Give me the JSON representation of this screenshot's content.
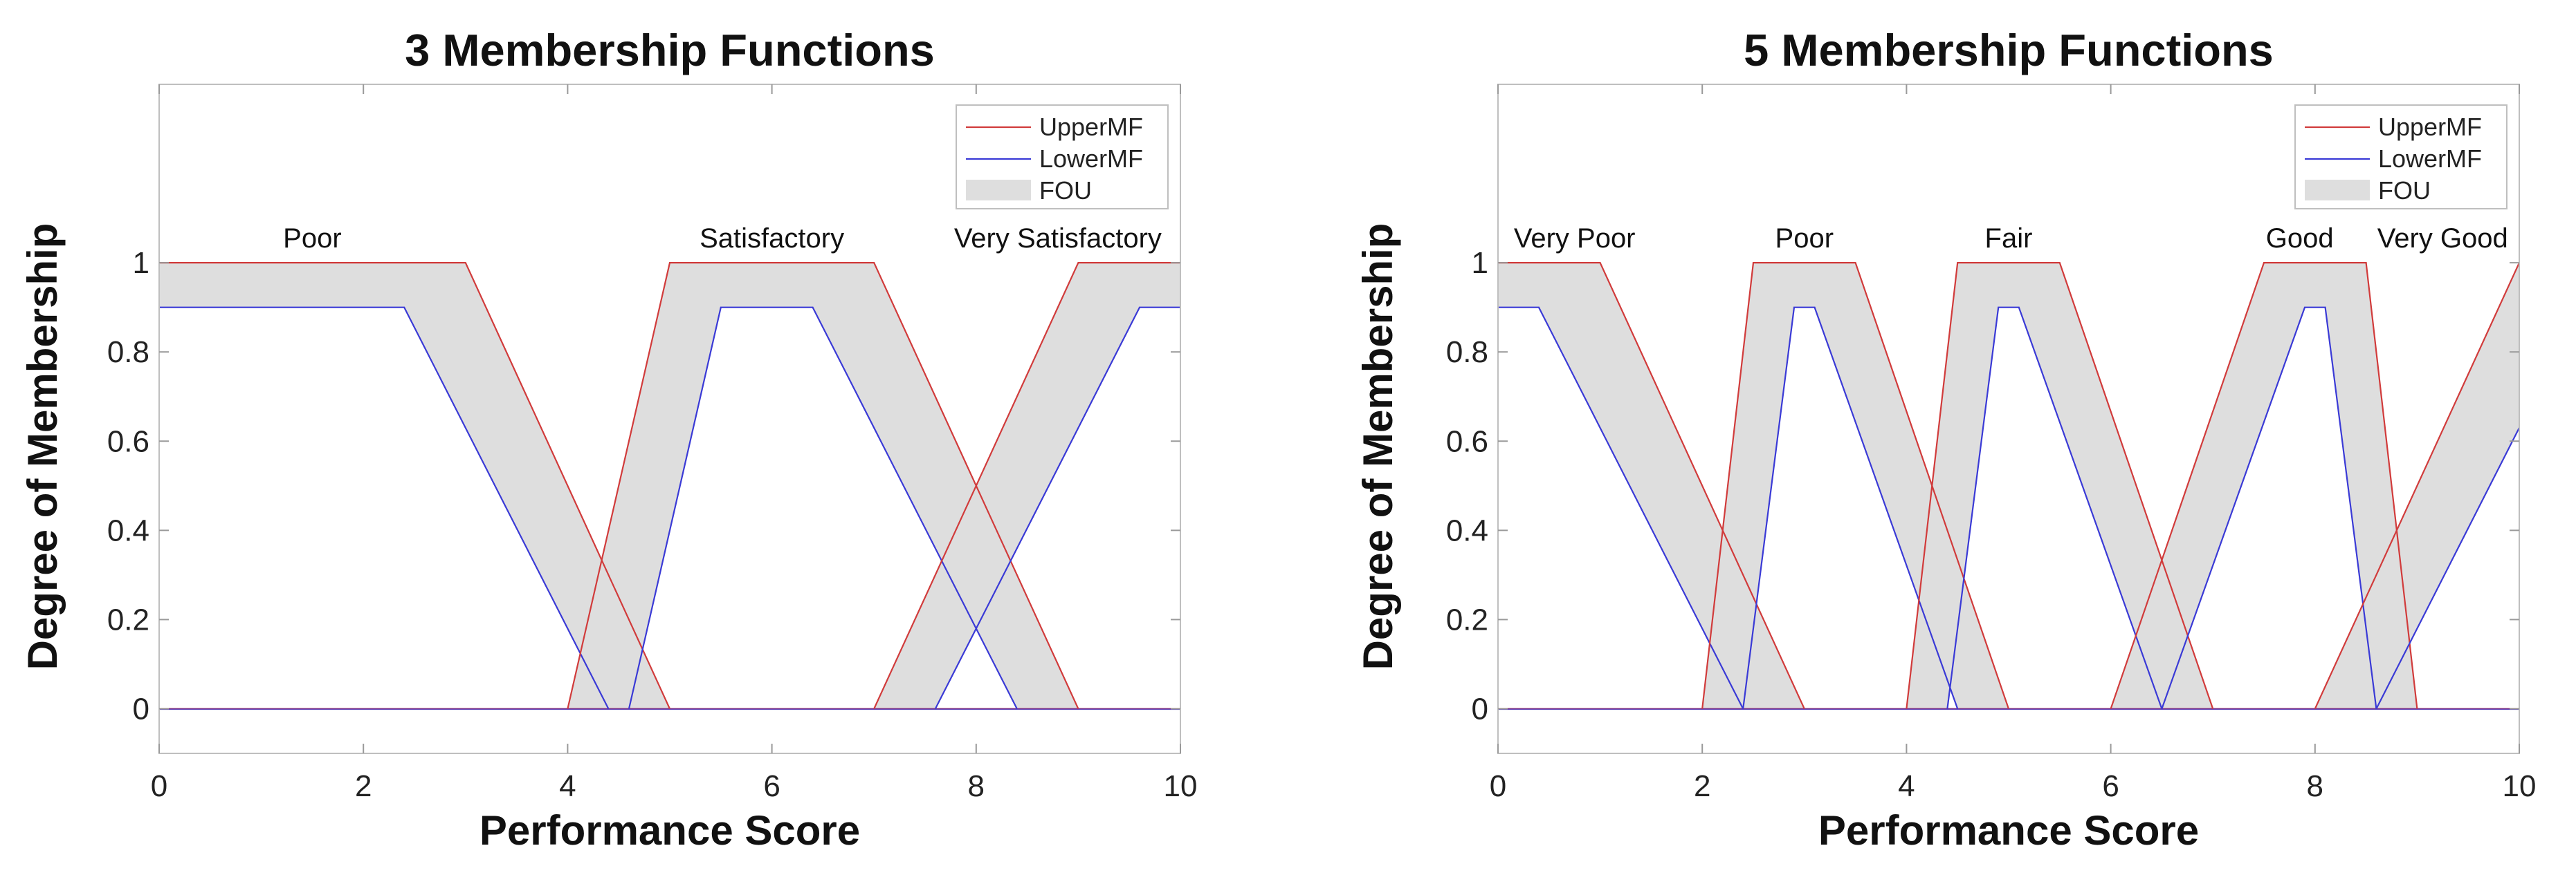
{
  "colors": {
    "upper": "#d13b3b",
    "lower": "#3a3ad6",
    "fou": "#dedede"
  },
  "chart_data": [
    {
      "type": "line",
      "title": "3 Membership Functions",
      "xlabel": "Performance Score",
      "ylabel": "Degree of Membership",
      "xlim": [
        0,
        10
      ],
      "ylim": [
        -0.1,
        1.4
      ],
      "xticks": [
        0,
        2,
        4,
        6,
        8,
        10
      ],
      "xtick_labels": [
        "0",
        "2",
        "4",
        "6",
        "8",
        "10"
      ],
      "yticks": [
        0,
        0.2,
        0.4,
        0.6,
        0.8,
        1
      ],
      "ytick_labels": [
        "0",
        "0.2",
        "0.4",
        "0.6",
        "0.8",
        "1"
      ],
      "legend": {
        "location": "top-right",
        "entries": [
          "UpperMF",
          "LowerMF",
          "FOU"
        ]
      },
      "mfs": [
        {
          "label": "Poor",
          "label_x": 1.5,
          "upper": [
            [
              0,
              1
            ],
            [
              3,
              1
            ],
            [
              5,
              0
            ]
          ],
          "lower": [
            [
              0,
              0.9
            ],
            [
              2.4,
              0.9
            ],
            [
              4.4,
              0
            ]
          ]
        },
        {
          "label": "Satisfactory",
          "label_x": 6.0,
          "upper": [
            [
              4,
              0
            ],
            [
              5,
              1
            ],
            [
              7,
              1
            ],
            [
              9,
              0
            ]
          ],
          "lower": [
            [
              4.6,
              0
            ],
            [
              5.5,
              0.9
            ],
            [
              6.4,
              0.9
            ],
            [
              8.4,
              0
            ]
          ]
        },
        {
          "label": "Very Satisfactory",
          "label_x": 8.8,
          "upper": [
            [
              7,
              0
            ],
            [
              9,
              1
            ],
            [
              10,
              1
            ]
          ],
          "lower": [
            [
              7.6,
              0
            ],
            [
              9.6,
              0.9
            ],
            [
              10,
              0.9
            ]
          ]
        }
      ]
    },
    {
      "type": "line",
      "title": "5 Membership Functions",
      "xlabel": "Performance Score",
      "ylabel": "Degree of Membership",
      "xlim": [
        0,
        10
      ],
      "ylim": [
        -0.1,
        1.4
      ],
      "xticks": [
        0,
        2,
        4,
        6,
        8,
        10
      ],
      "xtick_labels": [
        "0",
        "2",
        "4",
        "6",
        "8",
        "10"
      ],
      "yticks": [
        0,
        0.2,
        0.4,
        0.6,
        0.8,
        1
      ],
      "ytick_labels": [
        "0",
        "0.2",
        "0.4",
        "0.6",
        "0.8",
        "1"
      ],
      "legend": {
        "location": "top-right",
        "entries": [
          "UpperMF",
          "LowerMF",
          "FOU"
        ]
      },
      "mfs": [
        {
          "label": "Very Poor",
          "label_x": 0.75,
          "upper": [
            [
              0,
              1
            ],
            [
              1,
              1
            ],
            [
              3,
              0
            ]
          ],
          "lower": [
            [
              0,
              0.9
            ],
            [
              0.4,
              0.9
            ],
            [
              2.4,
              0
            ]
          ]
        },
        {
          "label": "Poor",
          "label_x": 3.0,
          "upper": [
            [
              2,
              0
            ],
            [
              2.5,
              1
            ],
            [
              3.5,
              1
            ],
            [
              5,
              0
            ]
          ],
          "lower": [
            [
              2.4,
              0
            ],
            [
              2.9,
              0.9
            ],
            [
              3.1,
              0.9
            ],
            [
              4.5,
              0
            ]
          ]
        },
        {
          "label": "Fair",
          "label_x": 5.0,
          "upper": [
            [
              4,
              0
            ],
            [
              4.5,
              1
            ],
            [
              5.5,
              1
            ],
            [
              7,
              0
            ]
          ],
          "lower": [
            [
              4.4,
              0
            ],
            [
              4.9,
              0.9
            ],
            [
              5.1,
              0.9
            ],
            [
              6.5,
              0
            ]
          ]
        },
        {
          "label": "Good",
          "label_x": 7.85,
          "upper": [
            [
              6,
              0
            ],
            [
              7.5,
              1
            ],
            [
              8.5,
              1
            ],
            [
              9,
              0
            ]
          ],
          "lower": [
            [
              6.5,
              0
            ],
            [
              7.9,
              0.9
            ],
            [
              8.1,
              0.9
            ],
            [
              8.6,
              0
            ]
          ]
        },
        {
          "label": "Very Good",
          "label_x": 9.25,
          "upper": [
            [
              8,
              0
            ],
            [
              10,
              1
            ]
          ],
          "lower": [
            [
              8.6,
              0
            ],
            [
              10,
              0.63
            ]
          ]
        }
      ]
    }
  ]
}
